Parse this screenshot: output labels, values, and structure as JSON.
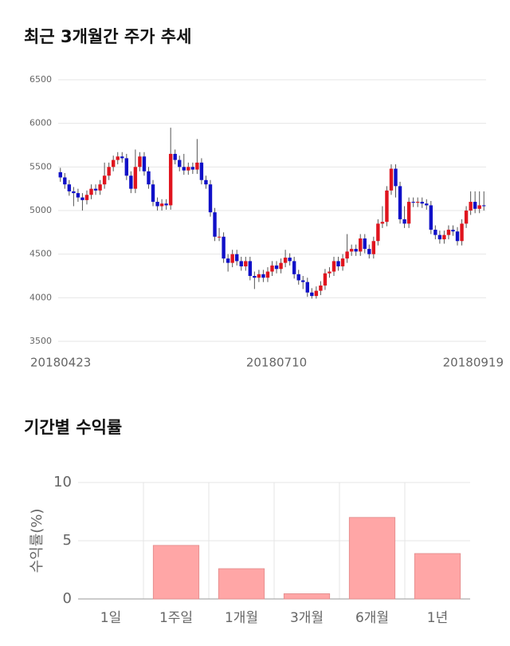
{
  "chart_data": [
    {
      "type": "candlestick",
      "title": "최근 3개월간 주가 추세",
      "categories": [
        "20180423",
        null,
        null,
        null,
        null,
        null,
        null,
        null,
        null,
        null,
        null,
        null,
        null,
        null,
        null,
        null,
        null,
        null,
        null,
        null,
        null,
        null,
        null,
        null,
        null,
        null,
        null,
        null,
        null,
        null,
        null,
        null,
        null,
        null,
        null,
        null,
        null,
        null,
        null,
        null,
        null,
        null,
        null,
        null,
        null,
        null,
        null,
        null,
        null,
        "20180710",
        null,
        null,
        null,
        null,
        null,
        null,
        null,
        null,
        null,
        null,
        null,
        null,
        null,
        null,
        null,
        null,
        null,
        null,
        null,
        null,
        null,
        null,
        null,
        null,
        null,
        null,
        null,
        null,
        null,
        null,
        null,
        null,
        null,
        null,
        null,
        null,
        null,
        null,
        null,
        null,
        null,
        null,
        null,
        null,
        null,
        null,
        "20180919"
      ],
      "open": [
        5440,
        5380,
        5300,
        5220,
        5200,
        5150,
        5120,
        5180,
        5250,
        5230,
        5300,
        5400,
        5500,
        5580,
        5620,
        5600,
        5400,
        5250,
        5500,
        5620,
        5450,
        5300,
        5100,
        5050,
        5080,
        5060,
        5650,
        5580,
        5500,
        5460,
        5500,
        5470,
        5550,
        5350,
        5300,
        4980,
        4700,
        4700,
        4450,
        4400,
        4500,
        4420,
        4360,
        4420,
        4250,
        4230,
        4270,
        4230,
        4300,
        4370,
        4330,
        4400,
        4460,
        4420,
        4270,
        4200,
        4180,
        4060,
        4020,
        4080,
        4140,
        4280,
        4300,
        4420,
        4360,
        4450,
        4530,
        4560,
        4530,
        4680,
        4560,
        4500,
        4650,
        4850,
        4870,
        5230,
        5480,
        5280,
        4900,
        4850,
        5100,
        5090,
        5100,
        5080,
        5060,
        4780,
        4720,
        4670,
        4720,
        4780,
        4760,
        4650,
        4850,
        5000,
        5100,
        5020,
        5060
      ],
      "high": [
        5490,
        5430,
        5350,
        5270,
        5250,
        5200,
        5230,
        5300,
        5300,
        5350,
        5550,
        5550,
        5630,
        5670,
        5670,
        5650,
        5450,
        5700,
        5670,
        5670,
        5500,
        5350,
        5150,
        5130,
        5130,
        5950,
        5700,
        5630,
        5650,
        5550,
        5550,
        5820,
        5600,
        5400,
        5350,
        5030,
        4800,
        4750,
        4500,
        4550,
        4550,
        4470,
        4470,
        4470,
        4300,
        4320,
        4320,
        4350,
        4420,
        4420,
        4450,
        4550,
        4510,
        4470,
        4320,
        4250,
        4230,
        4110,
        4130,
        4190,
        4330,
        4350,
        4470,
        4470,
        4500,
        4730,
        4610,
        4610,
        4730,
        4730,
        4610,
        4700,
        4900,
        5050,
        5280,
        5530,
        5530,
        5330,
        5050,
        5150,
        5150,
        5150,
        5150,
        5130,
        5110,
        4830,
        4770,
        4770,
        4830,
        4830,
        4810,
        4900,
        5050,
        5220,
        5220,
        5220,
        5220
      ],
      "low": [
        5330,
        5250,
        5170,
        5050,
        5100,
        5000,
        5070,
        5130,
        5180,
        5180,
        5250,
        5350,
        5450,
        5530,
        5550,
        5350,
        5200,
        5200,
        5450,
        5400,
        5250,
        5050,
        5000,
        5000,
        5010,
        5010,
        5530,
        5450,
        5410,
        5410,
        5420,
        5420,
        5300,
        5250,
        4930,
        4650,
        4650,
        4400,
        4300,
        4350,
        4370,
        4310,
        4310,
        4200,
        4100,
        4180,
        4180,
        4180,
        4250,
        4280,
        4280,
        4350,
        4370,
        4220,
        4150,
        4100,
        4010,
        3990,
        3990,
        4030,
        4090,
        4230,
        4250,
        4310,
        4310,
        4400,
        4480,
        4480,
        4480,
        4510,
        4450,
        4450,
        4600,
        4800,
        4820,
        5180,
        5150,
        4850,
        4800,
        4800,
        5040,
        5040,
        5030,
        5010,
        4730,
        4670,
        4620,
        4620,
        4670,
        4710,
        4600,
        4600,
        4800,
        4950,
        4970,
        4970,
        5000
      ],
      "close": [
        5380,
        5300,
        5220,
        5200,
        5150,
        5120,
        5180,
        5250,
        5230,
        5300,
        5400,
        5500,
        5580,
        5620,
        5600,
        5400,
        5250,
        5500,
        5620,
        5450,
        5300,
        5100,
        5050,
        5080,
        5060,
        5650,
        5580,
        5500,
        5460,
        5500,
        5470,
        5550,
        5350,
        5300,
        4980,
        4700,
        4700,
        4450,
        4400,
        4500,
        4420,
        4360,
        4420,
        4250,
        4230,
        4270,
        4230,
        4300,
        4370,
        4330,
        4400,
        4460,
        4420,
        4270,
        4200,
        4180,
        4060,
        4020,
        4080,
        4140,
        4280,
        4300,
        4420,
        4360,
        4450,
        4530,
        4560,
        4530,
        4680,
        4560,
        4500,
        4650,
        4850,
        4870,
        5230,
        5480,
        5280,
        4900,
        4850,
        5100,
        5090,
        5100,
        5080,
        5060,
        4780,
        4720,
        4670,
        4720,
        4780,
        4760,
        4650,
        4850,
        5000,
        5100,
        5020,
        5060,
        5050
      ],
      "up_color": "#e0141e",
      "down_color": "#1010c8",
      "ylim": [
        3500,
        6500
      ],
      "yticks": [
        3500,
        4000,
        4500,
        5000,
        5500,
        6000,
        6500
      ],
      "grid": true
    },
    {
      "type": "bar",
      "title": "기간별 수익률",
      "ylabel": "수익률(%)",
      "categories": [
        "1일",
        "1주일",
        "1개월",
        "3개월",
        "6개월",
        "1년"
      ],
      "values": [
        0,
        4.6,
        2.6,
        0.45,
        7.0,
        3.9
      ],
      "color": "#ffa6a6",
      "ylim": [
        0,
        10
      ],
      "yticks": [
        0,
        5,
        10
      ],
      "grid": true
    }
  ]
}
